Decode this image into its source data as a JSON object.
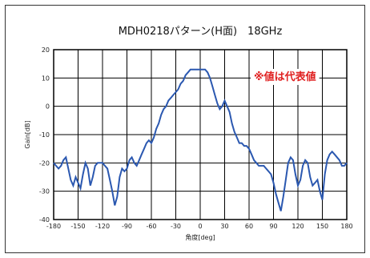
{
  "chart_data": {
    "type": "line",
    "title": "MDH0218パターン(H面)　18GHz",
    "xlabel": "角度[deg]",
    "ylabel": "Gain[dB]",
    "xlim": [
      -180,
      180
    ],
    "ylim": [
      -40,
      20
    ],
    "xticks": [
      -180,
      -150,
      -120,
      -90,
      -60,
      -30,
      0,
      30,
      60,
      90,
      120,
      150,
      180
    ],
    "yticks": [
      -40,
      -30,
      -20,
      -10,
      0,
      10,
      20
    ],
    "xtick_labels": [
      "-180",
      "-150",
      "-120",
      "-90",
      "-60",
      "-30",
      "0",
      "30",
      "60",
      "90",
      "120",
      "150",
      "180"
    ],
    "ytick_labels": [
      "-40",
      "-30",
      "-20",
      "-10",
      "0",
      "10",
      "20"
    ],
    "grid": true,
    "annotation": "※値は代表値",
    "series_color": "#2b58b0",
    "annotation_color": "#e02020",
    "series": [
      {
        "x": [
          -180,
          -177,
          -174,
          -171,
          -168,
          -165,
          -162,
          -159,
          -156,
          -153,
          -150,
          -147,
          -144,
          -141,
          -138,
          -135,
          -132,
          -129,
          -126,
          -123,
          -120,
          -117,
          -114,
          -111,
          -108,
          -105,
          -102,
          -99,
          -96,
          -93,
          -90,
          -87,
          -84,
          -81,
          -78,
          -75,
          -72,
          -69,
          -66,
          -63,
          -60,
          -57,
          -54,
          -51,
          -48,
          -45,
          -42,
          -39,
          -36,
          -33,
          -30,
          -27,
          -24,
          -21,
          -18,
          -15,
          -12,
          -9,
          -6,
          -3,
          0,
          3,
          6,
          9,
          12,
          15,
          18,
          21,
          24,
          27,
          30,
          33,
          36,
          39,
          42,
          45,
          48,
          51,
          54,
          57,
          60,
          63,
          66,
          69,
          72,
          75,
          78,
          81,
          84,
          87,
          90,
          93,
          96,
          99,
          102,
          105,
          108,
          111,
          114,
          117,
          120,
          123,
          126,
          129,
          132,
          135,
          138,
          141,
          144,
          147,
          150,
          153,
          156,
          159,
          162,
          165,
          168,
          171,
          174,
          177,
          180
        ],
        "y": [
          -20,
          -21,
          -22,
          -21,
          -19,
          -18,
          -22,
          -26,
          -28,
          -25,
          -27,
          -29,
          -24,
          -20,
          -22,
          -28,
          -25,
          -21,
          -20,
          -20,
          -20,
          -21,
          -22,
          -26,
          -30,
          -35,
          -32,
          -25,
          -22,
          -23,
          -22,
          -19,
          -18,
          -20,
          -21,
          -19,
          -17,
          -15,
          -13,
          -12,
          -13,
          -11,
          -8,
          -6,
          -3,
          -1,
          0,
          2,
          3,
          4,
          5,
          6,
          8,
          9,
          11,
          12,
          13,
          13,
          13,
          13,
          13,
          13,
          13,
          12,
          10,
          7,
          4,
          1,
          -1,
          0,
          2,
          0,
          -2,
          -6,
          -9,
          -11,
          -13,
          -13,
          -14,
          -14,
          -15,
          -17,
          -19,
          -20,
          -21,
          -21,
          -21,
          -22,
          -23,
          -24,
          -27,
          -31,
          -34,
          -37,
          -32,
          -26,
          -20,
          -18,
          -19,
          -24,
          -28,
          -26,
          -21,
          -19,
          -20,
          -25,
          -28,
          -27,
          -26,
          -30,
          -33,
          -24,
          -19,
          -17,
          -16,
          -17,
          -18,
          -19,
          -21,
          -21,
          -20
        ]
      }
    ]
  }
}
